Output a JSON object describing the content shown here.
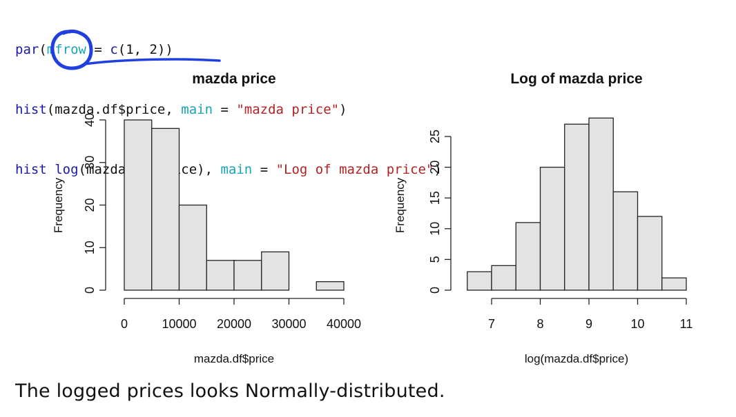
{
  "code": {
    "line1": {
      "fn": "par",
      "open": "(",
      "arg": "mfrow",
      "rest": " = ",
      "c": "c",
      "tail": "(1, 2))"
    },
    "line2": {
      "fn": "hist",
      "open": "(",
      "obj": "mazda.df$price",
      "sep": ", ",
      "arg": "main",
      "eq": " = ",
      "str": "\"mazda price\"",
      "close": ")"
    },
    "line3": {
      "fn": "hist",
      "sp": " ",
      "fn2": "log",
      "open": "(",
      "obj": "mazda.df$price",
      "mid": "), ",
      "arg": "main",
      "eq": " = ",
      "str": "\"Log of mazda price\"",
      "close": ")"
    }
  },
  "colors": {
    "keyword": "#1a1aa6",
    "argument": "#19a3b6",
    "string": "#b22222",
    "annotation": "#1f3fe0",
    "bar_fill": "#e3e3e3",
    "bar_stroke": "#222222"
  },
  "chart_data": [
    {
      "type": "bar",
      "title": "mazda price",
      "xlabel": "mazda.df$price",
      "ylabel": "Frequency",
      "bin_edges": [
        0,
        5000,
        10000,
        15000,
        20000,
        25000,
        30000,
        35000,
        40000
      ],
      "values": [
        40,
        38,
        20,
        7,
        7,
        9,
        0,
        2
      ],
      "xticks": [
        0,
        10000,
        20000,
        30000,
        40000
      ],
      "xtick_labels": [
        "0",
        "10000",
        "20000",
        "30000",
        "40000"
      ],
      "yticks": [
        0,
        10,
        20,
        30,
        40
      ],
      "ytick_labels": [
        "0",
        "10",
        "20",
        "30",
        "40"
      ],
      "xlim": [
        0,
        40000
      ],
      "ylim": [
        0,
        40
      ],
      "grid": false
    },
    {
      "type": "bar",
      "title": "Log of mazda price",
      "xlabel": "log(mazda.df$price)",
      "ylabel": "Frequency",
      "bin_edges": [
        6.5,
        7,
        7.5,
        8,
        8.5,
        9,
        9.5,
        10,
        10.5,
        11
      ],
      "values": [
        3,
        4,
        11,
        20,
        27,
        28,
        16,
        12,
        2
      ],
      "xticks": [
        7,
        8,
        9,
        10,
        11
      ],
      "xtick_labels": [
        "7",
        "8",
        "9",
        "10",
        "11"
      ],
      "yticks": [
        0,
        5,
        10,
        15,
        20,
        25
      ],
      "ytick_labels": [
        "0",
        "5",
        "10",
        "15",
        "20",
        "25"
      ],
      "xlim": [
        7,
        11
      ],
      "ylim": [
        0,
        25
      ],
      "grid": false
    }
  ],
  "caption": "The logged prices looks Normally-distributed."
}
